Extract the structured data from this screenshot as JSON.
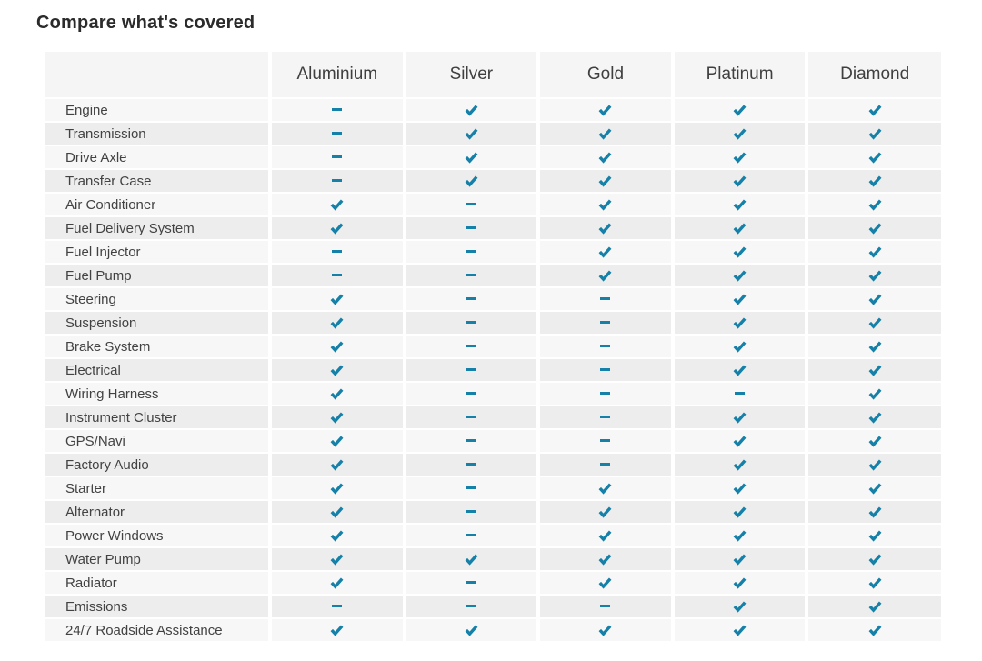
{
  "page": {
    "title": "Compare what's covered"
  },
  "colors": {
    "check_mark": "#1580a8",
    "header_bg": "#f5f5f5",
    "row_odd_bg": "#f7f7f7",
    "row_even_bg": "#ededed"
  },
  "icons": {
    "covered": "check-icon",
    "not_covered": "dash-icon"
  },
  "table": {
    "plans": [
      "Aluminium",
      "Silver",
      "Gold",
      "Platinum",
      "Diamond"
    ],
    "rows": [
      {
        "label": "Engine",
        "coverage": [
          false,
          true,
          true,
          true,
          true
        ]
      },
      {
        "label": "Transmission",
        "coverage": [
          false,
          true,
          true,
          true,
          true
        ]
      },
      {
        "label": "Drive Axle",
        "coverage": [
          false,
          true,
          true,
          true,
          true
        ]
      },
      {
        "label": "Transfer Case",
        "coverage": [
          false,
          true,
          true,
          true,
          true
        ]
      },
      {
        "label": "Air Conditioner",
        "coverage": [
          true,
          false,
          true,
          true,
          true
        ]
      },
      {
        "label": "Fuel Delivery System",
        "coverage": [
          true,
          false,
          true,
          true,
          true
        ]
      },
      {
        "label": "Fuel Injector",
        "coverage": [
          false,
          false,
          true,
          true,
          true
        ]
      },
      {
        "label": "Fuel Pump",
        "coverage": [
          false,
          false,
          true,
          true,
          true
        ]
      },
      {
        "label": "Steering",
        "coverage": [
          true,
          false,
          false,
          true,
          true
        ]
      },
      {
        "label": "Suspension",
        "coverage": [
          true,
          false,
          false,
          true,
          true
        ]
      },
      {
        "label": "Brake System",
        "coverage": [
          true,
          false,
          false,
          true,
          true
        ]
      },
      {
        "label": "Electrical",
        "coverage": [
          true,
          false,
          false,
          true,
          true
        ]
      },
      {
        "label": "Wiring Harness",
        "coverage": [
          true,
          false,
          false,
          false,
          true
        ]
      },
      {
        "label": "Instrument Cluster",
        "coverage": [
          true,
          false,
          false,
          true,
          true
        ]
      },
      {
        "label": "GPS/Navi",
        "coverage": [
          true,
          false,
          false,
          true,
          true
        ]
      },
      {
        "label": "Factory Audio",
        "coverage": [
          true,
          false,
          false,
          true,
          true
        ]
      },
      {
        "label": "Starter",
        "coverage": [
          true,
          false,
          true,
          true,
          true
        ]
      },
      {
        "label": "Alternator",
        "coverage": [
          true,
          false,
          true,
          true,
          true
        ]
      },
      {
        "label": "Power Windows",
        "coverage": [
          true,
          false,
          true,
          true,
          true
        ]
      },
      {
        "label": "Water Pump",
        "coverage": [
          true,
          true,
          true,
          true,
          true
        ]
      },
      {
        "label": "Radiator",
        "coverage": [
          true,
          false,
          true,
          true,
          true
        ]
      },
      {
        "label": "Emissions",
        "coverage": [
          false,
          false,
          false,
          true,
          true
        ]
      },
      {
        "label": "24/7 Roadside Assistance",
        "coverage": [
          true,
          true,
          true,
          true,
          true
        ]
      }
    ]
  }
}
